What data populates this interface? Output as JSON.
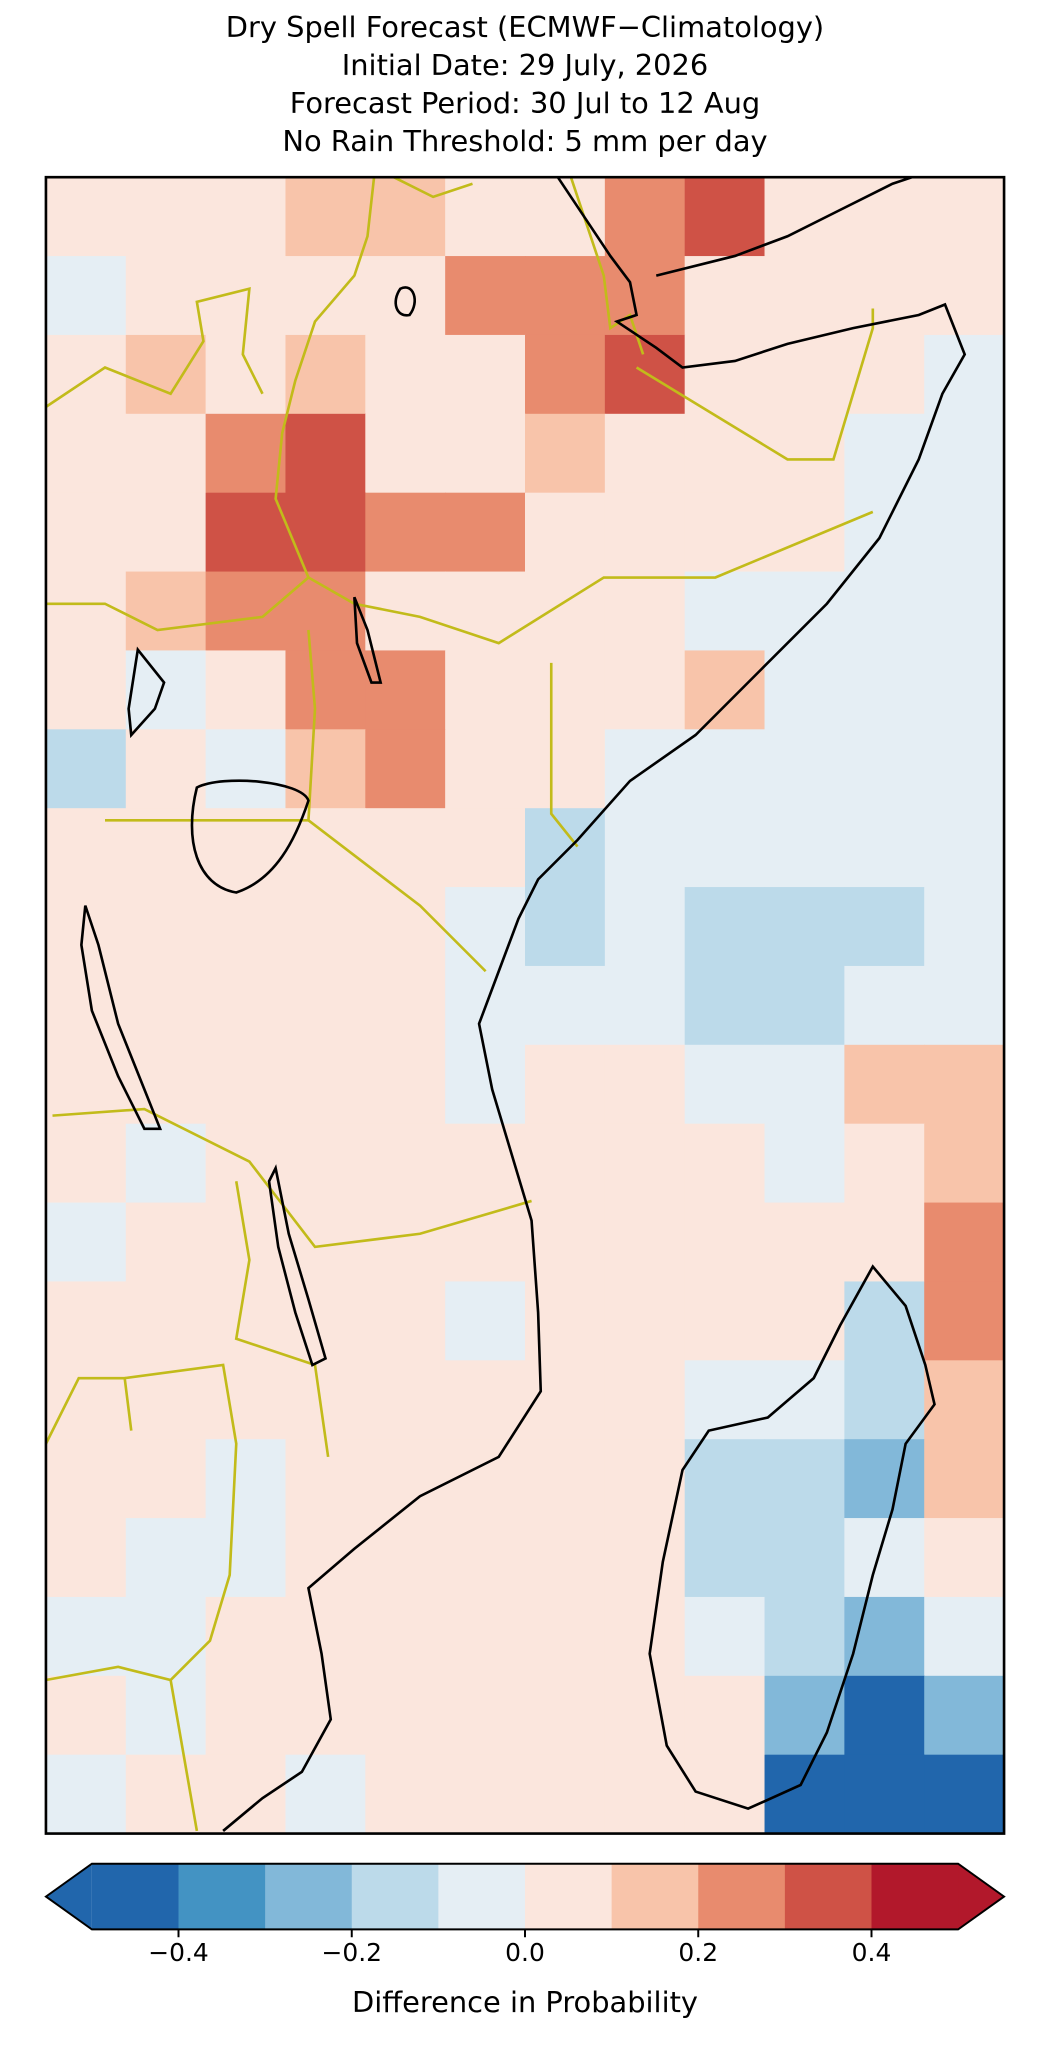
{
  "chart_data": {
    "type": "raster",
    "title": [
      "Dry Spell Forecast (ECMWF−Climatology)",
      "Initial Date: 29 July, 2026",
      "Forecast Period: 30 Jul to 12 Aug",
      "No Rain Threshold: 5 mm per day"
    ],
    "grid": [
      [
        0.05,
        0.05,
        0.05,
        0.15,
        0.15,
        0.05,
        0.05,
        0.25,
        0.35,
        0.05,
        0.05,
        0.05
      ],
      [
        -0.05,
        0.05,
        0.05,
        0.05,
        0.05,
        0.25,
        0.25,
        0.25,
        0.05,
        0.05,
        0.05,
        0.05
      ],
      [
        0.05,
        0.15,
        0.05,
        0.15,
        0.05,
        0.05,
        0.25,
        0.35,
        0.05,
        0.05,
        0.05,
        -0.05
      ],
      [
        0.05,
        0.05,
        0.25,
        0.35,
        0.05,
        0.05,
        0.15,
        0.05,
        0.05,
        0.05,
        -0.05,
        -0.05
      ],
      [
        0.05,
        0.05,
        0.3,
        0.35,
        0.25,
        0.25,
        0.05,
        0.05,
        0.05,
        0.05,
        -0.05,
        -0.05
      ],
      [
        0.05,
        0.15,
        0.25,
        0.25,
        0.05,
        0.05,
        0.05,
        0.05,
        -0.05,
        -0.05,
        -0.05,
        -0.05
      ],
      [
        0.05,
        -0.05,
        0.05,
        0.25,
        0.25,
        0.05,
        0.05,
        0.05,
        0.15,
        -0.05,
        -0.05,
        -0.05
      ],
      [
        -0.15,
        0.05,
        -0.05,
        0.15,
        0.25,
        0.05,
        0.05,
        -0.05,
        -0.05,
        -0.05,
        -0.05,
        -0.05
      ],
      [
        0.05,
        0.05,
        0.05,
        0.05,
        0.05,
        0.05,
        -0.15,
        -0.05,
        -0.05,
        -0.05,
        -0.05,
        -0.05
      ],
      [
        0.05,
        0.05,
        0.05,
        0.05,
        0.05,
        -0.05,
        -0.15,
        -0.05,
        -0.15,
        -0.15,
        -0.15,
        -0.05
      ],
      [
        0.05,
        0.05,
        0.05,
        0.05,
        0.05,
        -0.05,
        -0.05,
        -0.05,
        -0.15,
        -0.15,
        -0.05,
        -0.05
      ],
      [
        0.05,
        0.05,
        0.05,
        0.05,
        0.05,
        -0.05,
        0.05,
        0.05,
        -0.05,
        -0.05,
        0.15,
        0.15
      ],
      [
        0.05,
        -0.05,
        0.05,
        0.05,
        0.05,
        0.05,
        0.05,
        0.05,
        0.05,
        -0.05,
        0.05,
        0.15
      ],
      [
        -0.05,
        0.05,
        0.05,
        0.05,
        0.05,
        0.05,
        0.05,
        0.05,
        0.05,
        0.05,
        0.05,
        0.25
      ],
      [
        0.05,
        0.05,
        0.05,
        0.05,
        0.05,
        -0.05,
        0.05,
        0.05,
        0.05,
        0.05,
        -0.15,
        0.25
      ],
      [
        0.05,
        0.05,
        0.05,
        0.05,
        0.05,
        0.05,
        0.05,
        0.05,
        -0.05,
        -0.05,
        -0.15,
        0.15
      ],
      [
        0.05,
        0.05,
        -0.05,
        0.05,
        0.05,
        0.05,
        0.05,
        0.05,
        -0.15,
        -0.15,
        -0.25,
        0.15
      ],
      [
        0.05,
        -0.05,
        -0.05,
        0.05,
        0.05,
        0.05,
        0.05,
        0.05,
        -0.15,
        -0.15,
        -0.05,
        0.05
      ],
      [
        -0.05,
        -0.05,
        0.05,
        0.05,
        0.05,
        0.05,
        0.05,
        0.05,
        -0.05,
        -0.15,
        -0.25,
        -0.05
      ],
      [
        0.05,
        -0.05,
        0.05,
        0.05,
        0.05,
        0.05,
        0.05,
        0.05,
        0.05,
        -0.25,
        -0.45,
        -0.25
      ],
      [
        -0.05,
        0.05,
        0.05,
        -0.05,
        0.05,
        0.05,
        0.05,
        0.05,
        0.05,
        -0.45,
        -0.45,
        -0.45
      ]
    ],
    "colorbar": {
      "label": "Difference in Probability",
      "boundaries": [
        -0.5,
        -0.4,
        -0.3,
        -0.2,
        -0.1,
        0,
        0.1,
        0.2,
        0.3,
        0.4,
        0.5
      ],
      "colors": [
        "#2166ac",
        "#4393c3",
        "#82b8d9",
        "#bcdaea",
        "#e5eef4",
        "#fbe6dd",
        "#f8c4aa",
        "#e88b6e",
        "#cf5246",
        "#b2182b"
      ],
      "extend": "both",
      "ticks": [
        {
          "value": -0.4,
          "label": "−0.4"
        },
        {
          "value": -0.2,
          "label": "−0.2"
        },
        {
          "value": 0,
          "label": "0.0"
        },
        0.2,
        0.4
      ]
    }
  }
}
